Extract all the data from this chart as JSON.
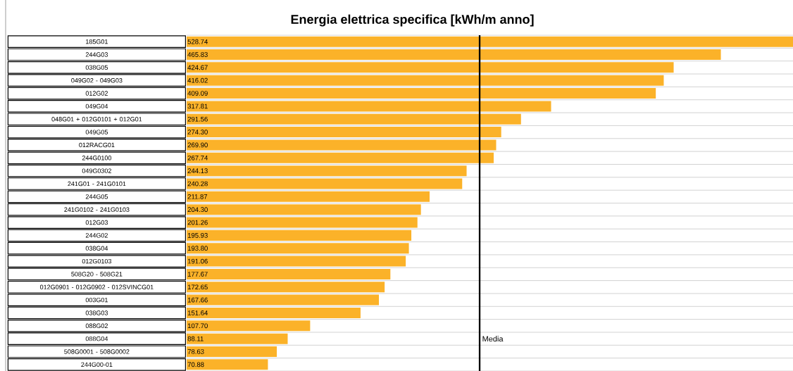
{
  "chart_data": {
    "type": "bar",
    "orientation": "horizontal",
    "title": "Energia elettrica specifica [kWh/m anno]",
    "categories": [
      "185G01",
      "244G03",
      "038G05",
      "049G02 - 049G03",
      "012G02",
      "049G04",
      "048G01 + 012G0101 + 012G01",
      "049G05",
      "012RACG01",
      "244G0100",
      "049G0302",
      "241G01 - 241G0101",
      "244G05",
      "241G0102 - 241G0103",
      "012G03",
      "244G02",
      "038G04",
      "012G0103",
      "508G20 - 508G21",
      "012G0901 - 012G0902 - 012SVINCG01",
      "003G01",
      "038G03",
      "088G02",
      "088G04",
      "508G0001 - 508G0002",
      "244G00-01"
    ],
    "values": [
      528.74,
      465.83,
      424.67,
      416.02,
      409.09,
      317.81,
      291.56,
      274.3,
      269.9,
      267.74,
      244.13,
      240.28,
      211.87,
      204.3,
      201.26,
      195.93,
      193.8,
      191.06,
      177.67,
      172.65,
      167.66,
      151.64,
      107.7,
      88.11,
      78.63,
      70.88
    ],
    "value_labels": [
      "528.74",
      "465.83",
      "424.67",
      "416.02",
      "409.09",
      "317.81",
      "291.56",
      "274.30",
      "269.90",
      "267.74",
      "244.13",
      "240.28",
      "211.87",
      "204.30",
      "201.26",
      "195.93",
      "193.80",
      "191.06",
      "177.67",
      "172.65",
      "167.66",
      "151.64",
      "107.70",
      "88.11",
      "78.63",
      "70.88"
    ],
    "color": "#fbb229",
    "grid": "y",
    "ref_lines": [
      {
        "axis": "x",
        "value": 255.5,
        "label": "Media",
        "color": "#000000"
      }
    ]
  }
}
